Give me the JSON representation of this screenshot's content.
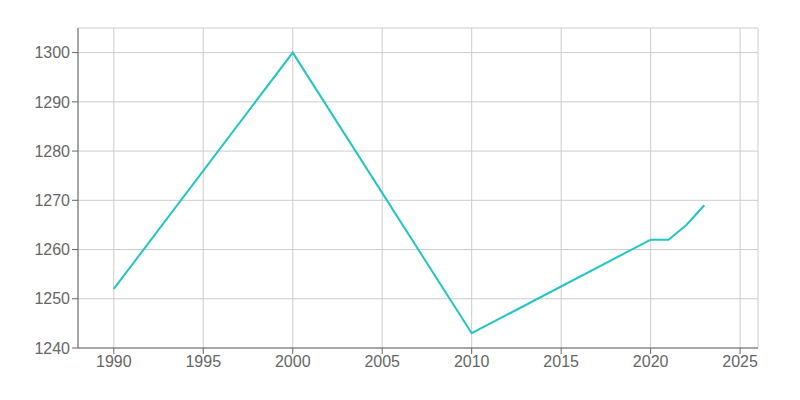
{
  "chart_data": {
    "type": "line",
    "x": [
      1990,
      2000,
      2010,
      2020,
      2021,
      2022,
      2023
    ],
    "values": [
      1252,
      1300,
      1243,
      1262,
      1262,
      1265,
      1269
    ],
    "color": "#22c4c4",
    "xlim": [
      1988,
      2026
    ],
    "ylim": [
      1240,
      1305
    ],
    "xticks": [
      1990,
      1995,
      2000,
      2005,
      2010,
      2015,
      2020,
      2025
    ],
    "yticks": [
      1240,
      1250,
      1260,
      1270,
      1280,
      1290,
      1300
    ],
    "grid": true
  }
}
